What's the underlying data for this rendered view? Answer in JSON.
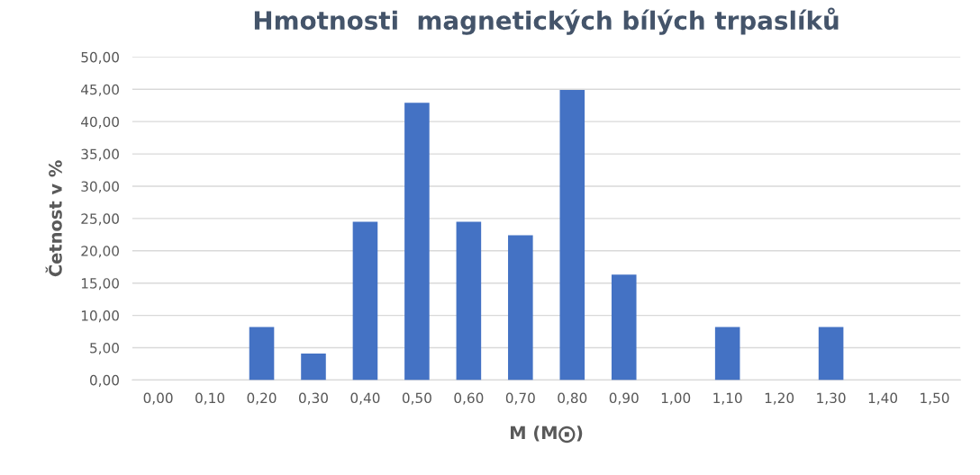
{
  "chart_data": {
    "type": "bar",
    "title": "Hmotnosti  magnetických bílých trpaslíků",
    "xlabel": "M (M⨀)",
    "ylabel": "Četnost v %",
    "categories": [
      "0,00",
      "0,10",
      "0,20",
      "0,30",
      "0,40",
      "0,50",
      "0,60",
      "0,70",
      "0,80",
      "0,90",
      "1,00",
      "1,10",
      "1,20",
      "1,30",
      "1,40",
      "1,50"
    ],
    "values": [
      0,
      0,
      8.2,
      4.1,
      24.5,
      42.9,
      24.5,
      22.4,
      44.9,
      16.3,
      0,
      8.2,
      0,
      8.2,
      0,
      0
    ],
    "color": "#4472c4",
    "ylim": [
      0,
      50
    ],
    "yticks": [
      {
        "value": 0,
        "label": "0,00"
      },
      {
        "value": 5,
        "label": "5,00"
      },
      {
        "value": 10,
        "label": "10,00"
      },
      {
        "value": 15,
        "label": "15,00"
      },
      {
        "value": 20,
        "label": "20,00"
      },
      {
        "value": 25,
        "label": "25,00"
      },
      {
        "value": 30,
        "label": "30,00"
      },
      {
        "value": 35,
        "label": "35,00"
      },
      {
        "value": 40,
        "label": "40,00"
      },
      {
        "value": 45,
        "label": "45,00"
      },
      {
        "value": 50,
        "label": "50,00"
      }
    ],
    "grid": "y"
  }
}
